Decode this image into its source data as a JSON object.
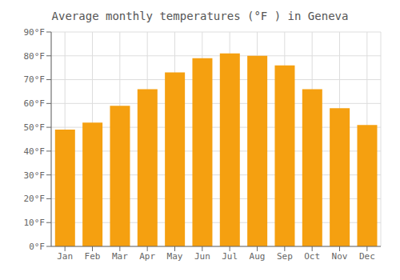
{
  "chart_data": {
    "type": "bar",
    "title": "Average monthly temperatures (°F ) in Geneva",
    "categories": [
      "Jan",
      "Feb",
      "Mar",
      "Apr",
      "May",
      "Jun",
      "Jul",
      "Aug",
      "Sep",
      "Oct",
      "Nov",
      "Dec"
    ],
    "values": [
      49,
      52,
      59,
      66,
      73,
      79,
      81,
      80,
      76,
      66,
      58,
      51
    ],
    "color": "#F5A010",
    "ylim": [
      0,
      90
    ],
    "yticks": [
      {
        "value": 0,
        "label": "0°F"
      },
      {
        "value": 10,
        "label": "10°F"
      },
      {
        "value": 20,
        "label": "20°F"
      },
      {
        "value": 30,
        "label": "30°F"
      },
      {
        "value": 40,
        "label": "40°F"
      },
      {
        "value": 50,
        "label": "50°F"
      },
      {
        "value": 60,
        "label": "60°F"
      },
      {
        "value": 70,
        "label": "70°F"
      },
      {
        "value": 80,
        "label": "80°F"
      },
      {
        "value": 90,
        "label": "90°F"
      }
    ],
    "grid": true
  }
}
